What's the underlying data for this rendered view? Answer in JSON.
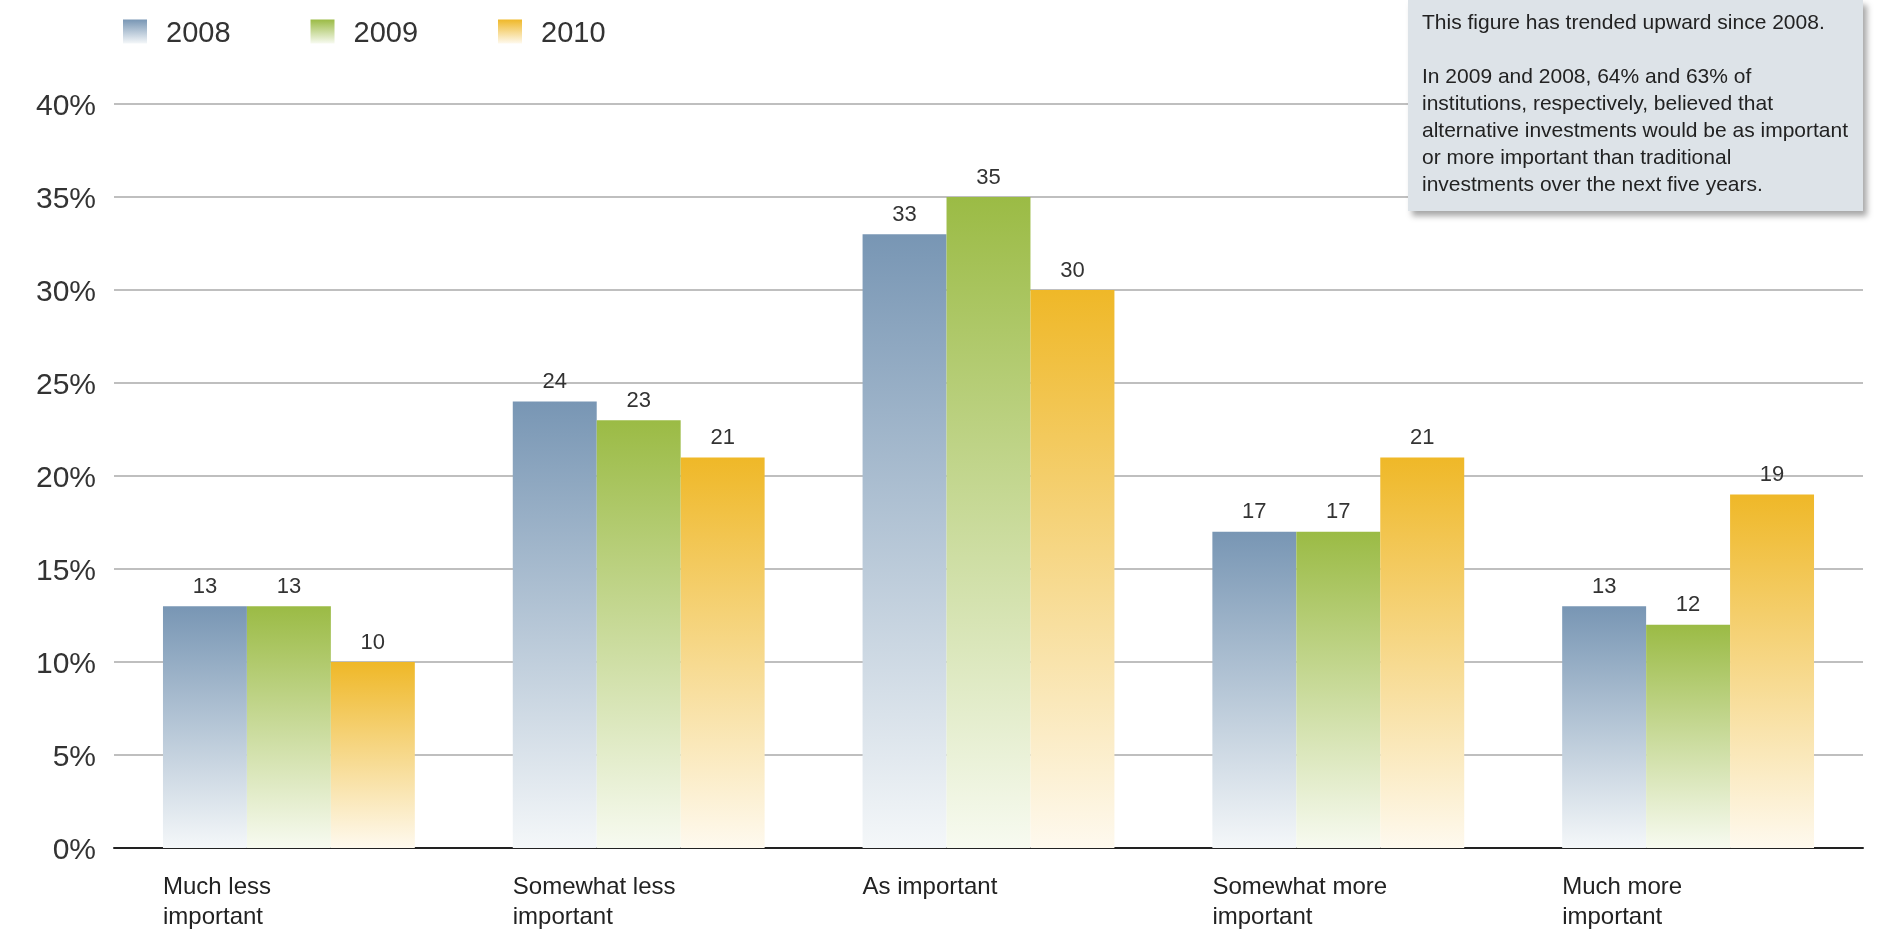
{
  "chart_data": {
    "type": "bar",
    "categories": [
      "Much less important",
      "Somewhat less important",
      "As important",
      "Somewhat more important",
      "Much more important"
    ],
    "series": [
      {
        "name": "2008",
        "color": "#7896b4",
        "values": [
          13,
          24,
          33,
          17,
          13
        ]
      },
      {
        "name": "2009",
        "color": "#9bbb45",
        "values": [
          13,
          23,
          35,
          17,
          12
        ]
      },
      {
        "name": "2010",
        "color": "#efb828",
        "values": [
          10,
          21,
          30,
          21,
          19
        ]
      }
    ],
    "ylim": [
      0,
      40
    ],
    "yticks": [
      {
        "value": 0,
        "label": "0%"
      },
      {
        "value": 5,
        "label": "5%"
      },
      {
        "value": 10,
        "label": "10%"
      },
      {
        "value": 15,
        "label": "15%"
      },
      {
        "value": 20,
        "label": "20%"
      },
      {
        "value": 25,
        "label": "25%"
      },
      {
        "value": 30,
        "label": "30%"
      },
      {
        "value": 35,
        "label": "35%"
      },
      {
        "value": 40,
        "label": "40%"
      }
    ],
    "grid": "y",
    "legend": "top left",
    "data_labels": true,
    "annotations": [
      "This figure has trended upward since 2008.",
      "In 2009 and 2008, 64% and 63% of institutions, respectively, believed that alternative investments would be as important or more important than traditional investments over the next five years."
    ]
  }
}
